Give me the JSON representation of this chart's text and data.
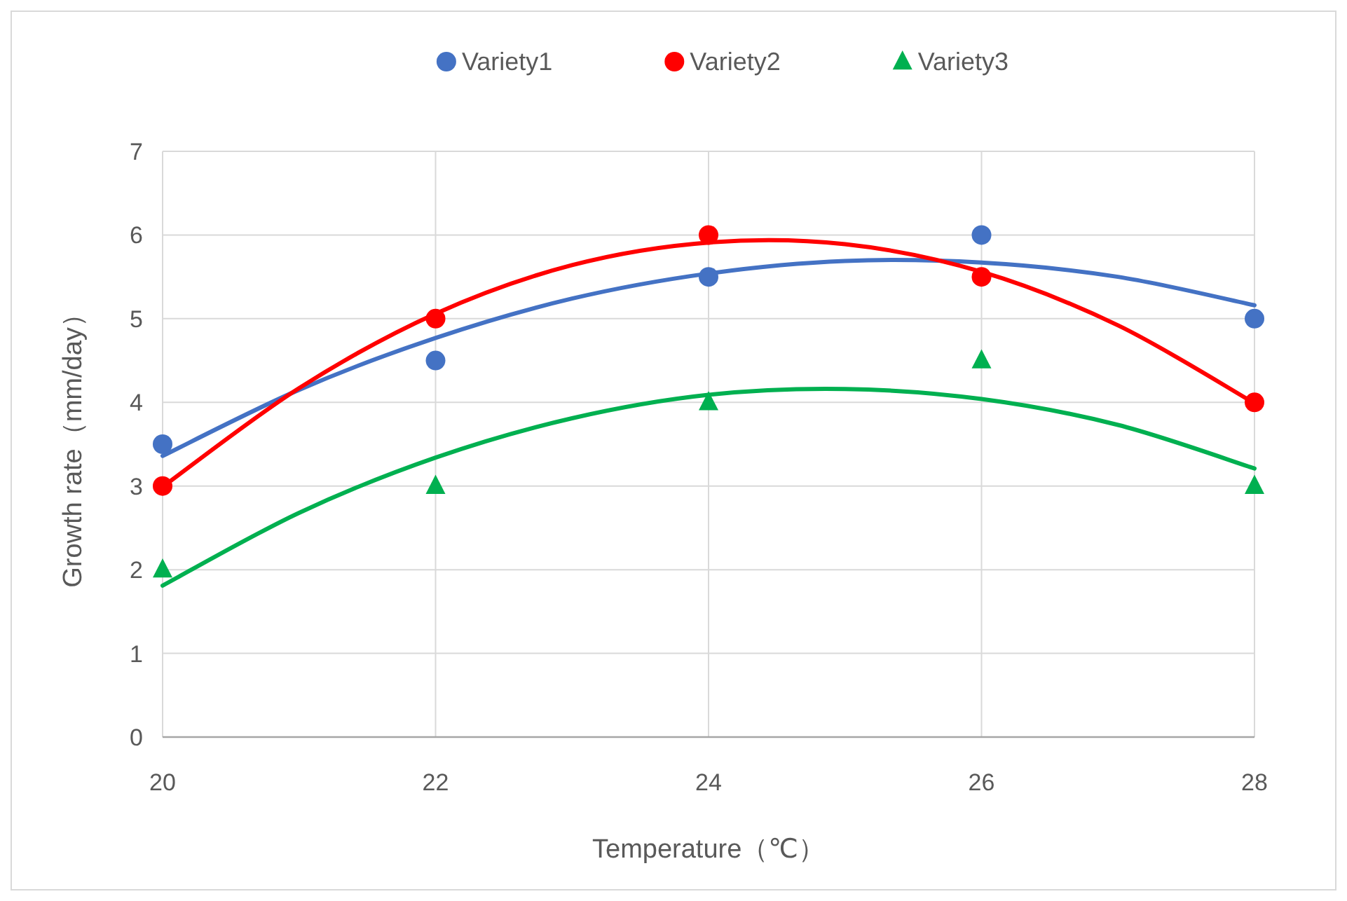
{
  "chart_data": {
    "type": "scatter",
    "xlabel": "Temperature（℃）",
    "ylabel": "Growth rate（mm/day）",
    "xlim": [
      20,
      28
    ],
    "xticks": [
      20,
      22,
      24,
      26,
      28
    ],
    "ylim": [
      0,
      7
    ],
    "yticks": [
      0,
      1,
      2,
      3,
      4,
      5,
      6,
      7
    ],
    "grid": true,
    "legend": "top",
    "series": [
      {
        "name": "Variety1",
        "marker": "circle",
        "color": "#4472c4",
        "x": [
          20,
          22,
          24,
          26,
          28
        ],
        "values": [
          3.5,
          4.5,
          5.5,
          6,
          5
        ]
      },
      {
        "name": "Variety2",
        "marker": "circle",
        "color": "#ff0000",
        "x": [
          20,
          22,
          24,
          26,
          28
        ],
        "values": [
          3,
          5,
          6,
          5.5,
          4
        ]
      },
      {
        "name": "Variety3",
        "marker": "triangle",
        "color": "#00b050",
        "x": [
          20,
          22,
          24,
          26,
          28
        ],
        "values": [
          2,
          3,
          4,
          4.5,
          3
        ]
      },
      {
        "type": "line",
        "color": "#4472c4",
        "x": [
          20,
          21,
          22,
          23,
          24,
          25,
          26,
          27,
          28
        ],
        "values": [
          3.36,
          4.15,
          4.77,
          5.24,
          5.54,
          5.69,
          5.67,
          5.5,
          5.16
        ]
      },
      {
        "type": "line",
        "color": "#ff0000",
        "x": [
          20,
          21,
          22,
          23,
          24,
          25,
          26,
          27,
          28
        ],
        "values": [
          2.99,
          4.17,
          5.06,
          5.64,
          5.91,
          5.89,
          5.56,
          4.92,
          3.99
        ]
      },
      {
        "type": "line",
        "color": "#00b050",
        "x": [
          20,
          21,
          22,
          23,
          24,
          25,
          26,
          27,
          28
        ],
        "values": [
          1.81,
          2.68,
          3.34,
          3.81,
          4.09,
          4.16,
          4.04,
          3.73,
          3.21
        ]
      }
    ]
  }
}
